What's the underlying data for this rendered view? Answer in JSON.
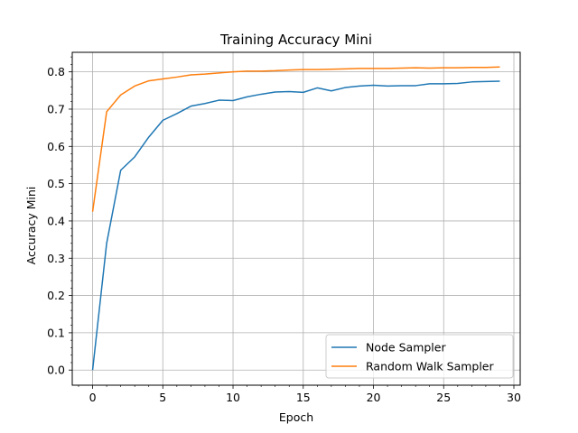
{
  "chart_data": {
    "type": "line",
    "title": "Training Accuracy Mini",
    "xlabel": "Epoch",
    "ylabel": "Accuracy Mini",
    "xlim": [
      -1.45,
      30.45
    ],
    "ylim": [
      -0.0406,
      0.8524
    ],
    "xticks": [
      0,
      5,
      10,
      15,
      20,
      25,
      30
    ],
    "yticks": [
      0.0,
      0.1,
      0.2,
      0.3,
      0.4,
      0.5,
      0.6,
      0.7,
      0.8
    ],
    "grid": true,
    "legend_position": "lower-right",
    "x": [
      0,
      1,
      2,
      3,
      4,
      5,
      6,
      7,
      8,
      9,
      10,
      11,
      12,
      13,
      14,
      15,
      16,
      17,
      18,
      19,
      20,
      21,
      22,
      23,
      24,
      25,
      26,
      27,
      28,
      29
    ],
    "series": [
      {
        "name": "Node Sampler",
        "color": "#1f77b4",
        "values": [
          0.0,
          0.34,
          0.536,
          0.572,
          0.625,
          0.67,
          0.688,
          0.708,
          0.715,
          0.724,
          0.723,
          0.733,
          0.74,
          0.746,
          0.747,
          0.745,
          0.757,
          0.749,
          0.758,
          0.762,
          0.764,
          0.762,
          0.763,
          0.763,
          0.768,
          0.768,
          0.769,
          0.773,
          0.774,
          0.775
        ]
      },
      {
        "name": "Random Walk Sampler",
        "color": "#ff7f0e",
        "values": [
          0.425,
          0.693,
          0.738,
          0.762,
          0.776,
          0.781,
          0.786,
          0.792,
          0.794,
          0.797,
          0.8,
          0.802,
          0.802,
          0.803,
          0.805,
          0.806,
          0.806,
          0.807,
          0.808,
          0.809,
          0.809,
          0.809,
          0.81,
          0.811,
          0.81,
          0.811,
          0.811,
          0.812,
          0.812,
          0.813
        ]
      }
    ]
  }
}
